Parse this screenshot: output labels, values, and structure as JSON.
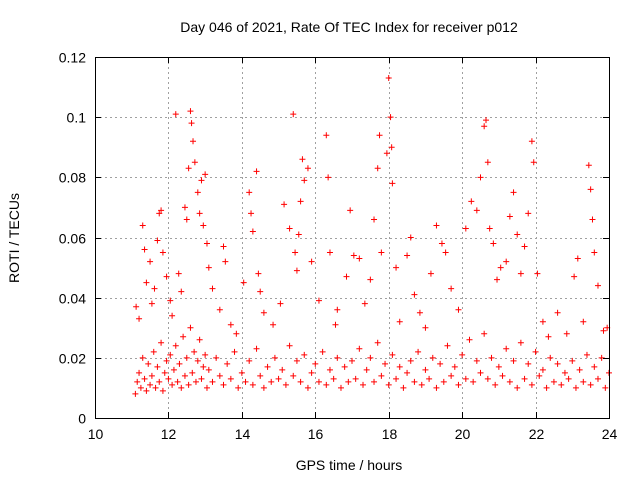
{
  "chart_data": {
    "type": "scatter",
    "title": "Day 046 of 2021, Rate Of TEC Index for receiver p012",
    "xlabel": "GPS time / hours",
    "ylabel": "ROTI / TECUs",
    "xlim": [
      10,
      24
    ],
    "ylim": [
      0,
      0.12
    ],
    "xticks": [
      10,
      12,
      14,
      16,
      18,
      20,
      22,
      24
    ],
    "xtick_labels": [
      "10",
      "12",
      "14",
      "16",
      "18",
      "20",
      "22",
      "24"
    ],
    "yticks": [
      0,
      0.02,
      0.04,
      0.06,
      0.08,
      0.1,
      0.12
    ],
    "ytick_labels": [
      "0",
      "0.02",
      "0.04",
      "0.06",
      "0.08",
      "0.1",
      "0.12"
    ],
    "grid": true,
    "marker": "plus",
    "color": "#ff0000",
    "series": [
      {
        "points": [
          [
            11.1,
            0.008
          ],
          [
            11.15,
            0.012
          ],
          [
            11.2,
            0.015
          ],
          [
            11.25,
            0.01
          ],
          [
            11.3,
            0.02
          ],
          [
            11.35,
            0.013
          ],
          [
            11.4,
            0.009
          ],
          [
            11.45,
            0.018
          ],
          [
            11.5,
            0.011
          ],
          [
            11.55,
            0.014
          ],
          [
            11.6,
            0.022
          ],
          [
            11.65,
            0.01
          ],
          [
            11.7,
            0.017
          ],
          [
            11.75,
            0.012
          ],
          [
            11.8,
            0.025
          ],
          [
            11.85,
            0.009
          ],
          [
            11.9,
            0.015
          ],
          [
            11.95,
            0.019
          ],
          [
            12.0,
            0.013
          ],
          [
            12.05,
            0.021
          ],
          [
            12.1,
            0.011
          ],
          [
            12.15,
            0.016
          ],
          [
            12.2,
            0.024
          ],
          [
            12.25,
            0.012
          ],
          [
            12.3,
            0.018
          ],
          [
            12.35,
            0.01
          ],
          [
            12.4,
            0.027
          ],
          [
            12.45,
            0.014
          ],
          [
            12.5,
            0.02
          ],
          [
            12.55,
            0.011
          ],
          [
            12.6,
            0.03
          ],
          [
            12.65,
            0.015
          ],
          [
            12.7,
            0.022
          ],
          [
            12.75,
            0.012
          ],
          [
            12.8,
            0.019
          ],
          [
            12.85,
            0.026
          ],
          [
            12.9,
            0.013
          ],
          [
            12.95,
            0.017
          ],
          [
            13.0,
            0.021
          ],
          [
            13.05,
            0.01
          ],
          [
            13.1,
            0.016
          ],
          [
            13.2,
            0.012
          ],
          [
            13.3,
            0.02
          ],
          [
            13.4,
            0.014
          ],
          [
            13.5,
            0.011
          ],
          [
            13.6,
            0.018
          ],
          [
            13.7,
            0.013
          ],
          [
            13.8,
            0.022
          ],
          [
            13.9,
            0.01
          ],
          [
            14.0,
            0.015
          ],
          [
            14.1,
            0.012
          ],
          [
            14.2,
            0.019
          ],
          [
            14.3,
            0.011
          ],
          [
            14.4,
            0.023
          ],
          [
            14.5,
            0.014
          ],
          [
            14.6,
            0.01
          ],
          [
            14.7,
            0.017
          ],
          [
            14.8,
            0.012
          ],
          [
            14.9,
            0.02
          ],
          [
            15.0,
            0.013
          ],
          [
            15.1,
            0.016
          ],
          [
            15.2,
            0.011
          ],
          [
            15.3,
            0.024
          ],
          [
            15.4,
            0.014
          ],
          [
            15.5,
            0.019
          ],
          [
            15.6,
            0.012
          ],
          [
            15.7,
            0.021
          ],
          [
            15.8,
            0.01
          ],
          [
            15.9,
            0.015
          ],
          [
            16.0,
            0.018
          ],
          [
            16.1,
            0.012
          ],
          [
            16.2,
            0.022
          ],
          [
            16.3,
            0.011
          ],
          [
            16.4,
            0.016
          ],
          [
            16.5,
            0.013
          ],
          [
            16.6,
            0.02
          ],
          [
            16.7,
            0.01
          ],
          [
            16.8,
            0.017
          ],
          [
            16.9,
            0.012
          ],
          [
            17.0,
            0.019
          ],
          [
            17.1,
            0.013
          ],
          [
            17.2,
            0.023
          ],
          [
            17.3,
            0.011
          ],
          [
            17.4,
            0.016
          ],
          [
            17.5,
            0.02
          ],
          [
            17.6,
            0.012
          ],
          [
            17.7,
            0.025
          ],
          [
            17.8,
            0.014
          ],
          [
            17.9,
            0.018
          ],
          [
            18.0,
            0.011
          ],
          [
            18.1,
            0.021
          ],
          [
            18.2,
            0.013
          ],
          [
            18.3,
            0.017
          ],
          [
            18.4,
            0.01
          ],
          [
            18.5,
            0.015
          ],
          [
            18.6,
            0.019
          ],
          [
            18.7,
            0.012
          ],
          [
            18.8,
            0.022
          ],
          [
            18.9,
            0.011
          ],
          [
            19.0,
            0.016
          ],
          [
            19.1,
            0.013
          ],
          [
            19.2,
            0.02
          ],
          [
            19.3,
            0.01
          ],
          [
            19.4,
            0.018
          ],
          [
            19.5,
            0.012
          ],
          [
            19.6,
            0.024
          ],
          [
            19.7,
            0.014
          ],
          [
            19.8,
            0.017
          ],
          [
            19.9,
            0.011
          ],
          [
            20.0,
            0.021
          ],
          [
            20.1,
            0.013
          ],
          [
            20.2,
            0.026
          ],
          [
            20.3,
            0.012
          ],
          [
            20.4,
            0.019
          ],
          [
            20.5,
            0.015
          ],
          [
            20.6,
            0.028
          ],
          [
            20.7,
            0.013
          ],
          [
            20.8,
            0.02
          ],
          [
            20.9,
            0.011
          ],
          [
            21.0,
            0.017
          ],
          [
            21.1,
            0.014
          ],
          [
            21.2,
            0.023
          ],
          [
            21.3,
            0.012
          ],
          [
            21.4,
            0.019
          ],
          [
            21.5,
            0.01
          ],
          [
            21.6,
            0.025
          ],
          [
            21.7,
            0.013
          ],
          [
            21.8,
            0.018
          ],
          [
            21.9,
            0.011
          ],
          [
            22.0,
            0.022
          ],
          [
            22.1,
            0.014
          ],
          [
            22.2,
            0.016
          ],
          [
            22.3,
            0.01
          ],
          [
            22.4,
            0.02
          ],
          [
            22.5,
            0.012
          ],
          [
            22.6,
            0.018
          ],
          [
            22.7,
            0.011
          ],
          [
            22.8,
            0.015
          ],
          [
            22.9,
            0.013
          ],
          [
            23.0,
            0.019
          ],
          [
            23.1,
            0.01
          ],
          [
            23.2,
            0.016
          ],
          [
            23.3,
            0.012
          ],
          [
            23.4,
            0.021
          ],
          [
            23.5,
            0.011
          ],
          [
            23.6,
            0.017
          ],
          [
            23.7,
            0.013
          ],
          [
            23.8,
            0.02
          ],
          [
            23.9,
            0.01
          ],
          [
            24.0,
            0.015
          ],
          [
            11.12,
            0.037
          ],
          [
            11.2,
            0.033
          ],
          [
            11.3,
            0.064
          ],
          [
            11.35,
            0.056
          ],
          [
            11.4,
            0.045
          ],
          [
            11.5,
            0.052
          ],
          [
            11.55,
            0.038
          ],
          [
            11.62,
            0.043
          ],
          [
            11.7,
            0.059
          ],
          [
            11.75,
            0.068
          ],
          [
            11.8,
            0.069
          ],
          [
            11.85,
            0.055
          ],
          [
            11.95,
            0.047
          ],
          [
            12.05,
            0.039
          ],
          [
            12.1,
            0.034
          ],
          [
            12.2,
            0.101
          ],
          [
            12.28,
            0.048
          ],
          [
            12.35,
            0.042
          ],
          [
            12.45,
            0.07
          ],
          [
            12.5,
            0.066
          ],
          [
            12.55,
            0.083
          ],
          [
            12.6,
            0.102
          ],
          [
            12.63,
            0.098
          ],
          [
            12.67,
            0.092
          ],
          [
            12.72,
            0.085
          ],
          [
            12.8,
            0.075
          ],
          [
            12.85,
            0.068
          ],
          [
            12.9,
            0.079
          ],
          [
            12.95,
            0.064
          ],
          [
            13.0,
            0.081
          ],
          [
            13.05,
            0.058
          ],
          [
            13.1,
            0.05
          ],
          [
            13.2,
            0.043
          ],
          [
            13.4,
            0.036
          ],
          [
            13.5,
            0.057
          ],
          [
            13.55,
            0.052
          ],
          [
            13.7,
            0.031
          ],
          [
            13.85,
            0.028
          ],
          [
            14.05,
            0.045
          ],
          [
            14.2,
            0.075
          ],
          [
            14.25,
            0.068
          ],
          [
            14.3,
            0.062
          ],
          [
            14.4,
            0.082
          ],
          [
            14.45,
            0.048
          ],
          [
            14.5,
            0.042
          ],
          [
            14.6,
            0.035
          ],
          [
            14.85,
            0.031
          ],
          [
            15.05,
            0.038
          ],
          [
            15.15,
            0.071
          ],
          [
            15.3,
            0.063
          ],
          [
            15.4,
            0.101
          ],
          [
            15.45,
            0.055
          ],
          [
            15.5,
            0.049
          ],
          [
            15.55,
            0.061
          ],
          [
            15.6,
            0.072
          ],
          [
            15.65,
            0.086
          ],
          [
            15.7,
            0.079
          ],
          [
            15.8,
            0.083
          ],
          [
            15.9,
            0.052
          ],
          [
            16.1,
            0.039
          ],
          [
            16.3,
            0.094
          ],
          [
            16.35,
            0.08
          ],
          [
            16.4,
            0.055
          ],
          [
            16.55,
            0.031
          ],
          [
            16.6,
            0.036
          ],
          [
            16.85,
            0.047
          ],
          [
            16.95,
            0.069
          ],
          [
            17.05,
            0.054
          ],
          [
            17.2,
            0.053
          ],
          [
            17.35,
            0.038
          ],
          [
            17.5,
            0.046
          ],
          [
            17.6,
            0.066
          ],
          [
            17.7,
            0.083
          ],
          [
            17.75,
            0.094
          ],
          [
            17.8,
            0.055
          ],
          [
            17.95,
            0.088
          ],
          [
            18.0,
            0.113
          ],
          [
            18.05,
            0.1
          ],
          [
            18.08,
            0.09
          ],
          [
            18.1,
            0.078
          ],
          [
            18.2,
            0.05
          ],
          [
            18.3,
            0.032
          ],
          [
            18.5,
            0.054
          ],
          [
            18.6,
            0.06
          ],
          [
            18.7,
            0.041
          ],
          [
            18.85,
            0.035
          ],
          [
            19.0,
            0.03
          ],
          [
            19.15,
            0.048
          ],
          [
            19.3,
            0.064
          ],
          [
            19.45,
            0.058
          ],
          [
            19.55,
            0.055
          ],
          [
            19.7,
            0.043
          ],
          [
            19.9,
            0.036
          ],
          [
            20.1,
            0.063
          ],
          [
            20.25,
            0.072
          ],
          [
            20.4,
            0.069
          ],
          [
            20.5,
            0.08
          ],
          [
            20.6,
            0.097
          ],
          [
            20.65,
            0.099
          ],
          [
            20.7,
            0.085
          ],
          [
            20.75,
            0.063
          ],
          [
            20.85,
            0.058
          ],
          [
            20.95,
            0.046
          ],
          [
            21.05,
            0.05
          ],
          [
            21.2,
            0.052
          ],
          [
            21.3,
            0.067
          ],
          [
            21.4,
            0.075
          ],
          [
            21.5,
            0.061
          ],
          [
            21.6,
            0.048
          ],
          [
            21.7,
            0.057
          ],
          [
            21.8,
            0.068
          ],
          [
            21.9,
            0.092
          ],
          [
            21.95,
            0.085
          ],
          [
            22.05,
            0.048
          ],
          [
            22.2,
            0.032
          ],
          [
            22.35,
            0.027
          ],
          [
            22.6,
            0.035
          ],
          [
            22.85,
            0.028
          ],
          [
            23.05,
            0.047
          ],
          [
            23.15,
            0.053
          ],
          [
            23.3,
            0.032
          ],
          [
            23.45,
            0.084
          ],
          [
            23.5,
            0.076
          ],
          [
            23.55,
            0.066
          ],
          [
            23.6,
            0.055
          ],
          [
            23.7,
            0.044
          ],
          [
            23.85,
            0.029
          ],
          [
            23.95,
            0.03
          ]
        ]
      }
    ]
  }
}
